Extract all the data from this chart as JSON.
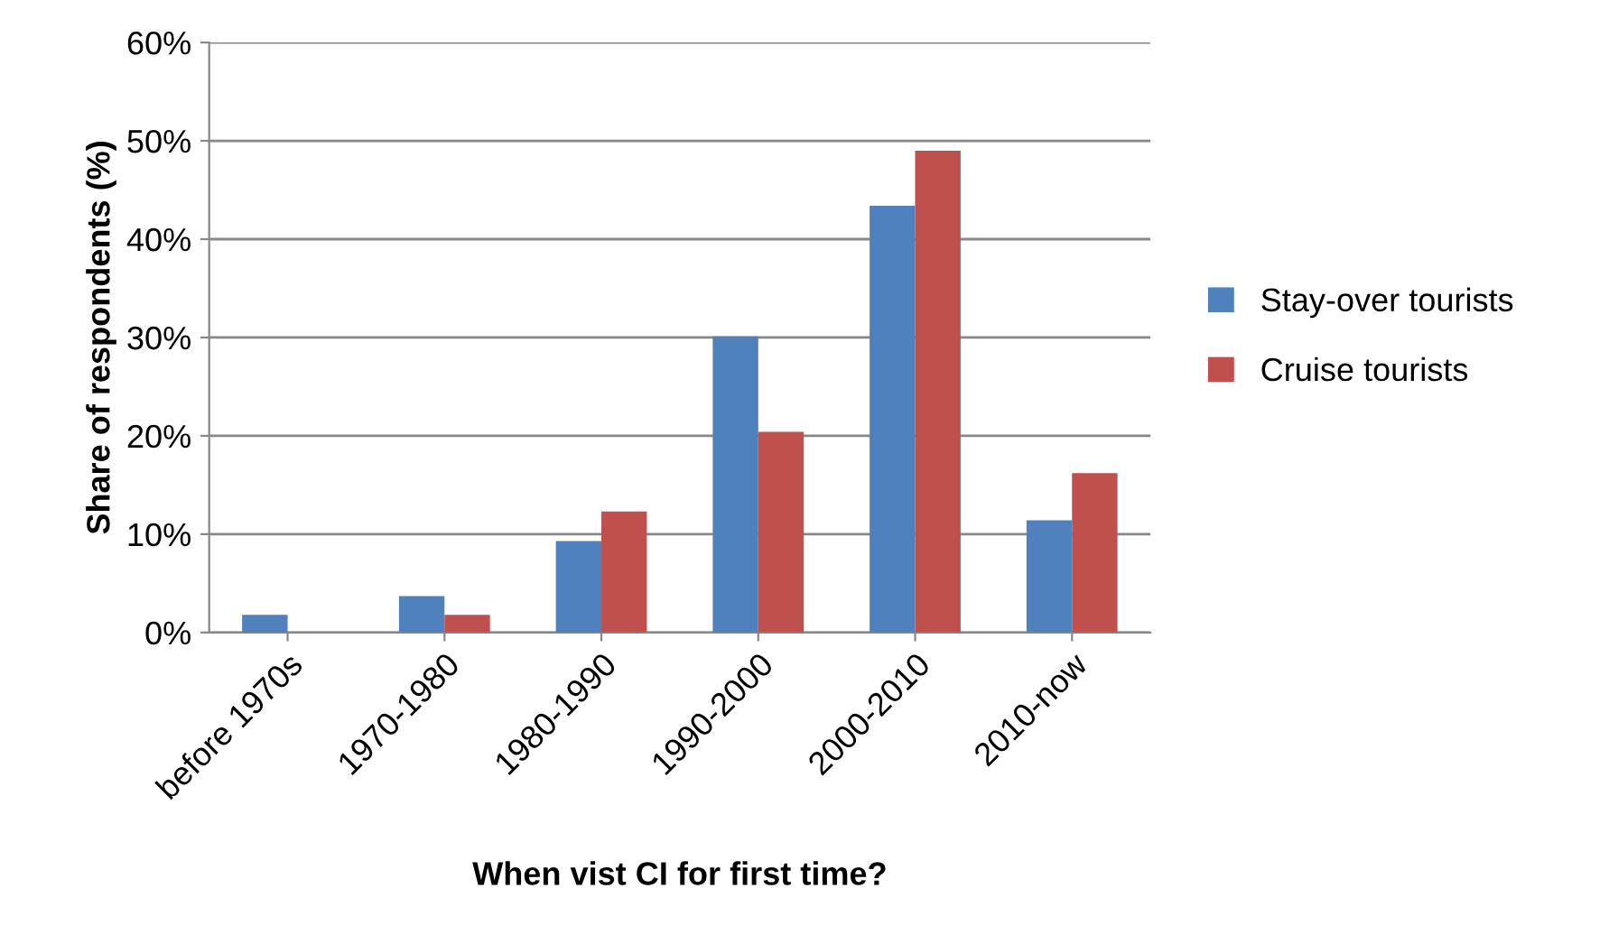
{
  "chart_data": {
    "type": "bar",
    "xlabel": "When vist CI for first time?",
    "ylabel": "Share of respondents (%)",
    "categories": [
      "before 1970s",
      "1970-1980",
      "1980-1990",
      "1990-2000",
      "2000-2010",
      "2010-now"
    ],
    "series": [
      {
        "name": "Stay-over tourists",
        "color": "#4f81bd",
        "values": [
          1.8,
          3.7,
          9.3,
          30.1,
          43.4,
          11.4
        ]
      },
      {
        "name": "Cruise tourists",
        "color": "#c0504d",
        "values": [
          0,
          1.8,
          12.3,
          20.4,
          49.0,
          16.2
        ]
      }
    ],
    "ylim": [
      0,
      60
    ],
    "yticks": [
      {
        "value": 0,
        "label": "0%"
      },
      {
        "value": 10,
        "label": "10%"
      },
      {
        "value": 20,
        "label": "20%"
      },
      {
        "value": 30,
        "label": "30%"
      },
      {
        "value": 40,
        "label": "40%"
      },
      {
        "value": 50,
        "label": "50%"
      },
      {
        "value": 60,
        "label": "60%"
      }
    ],
    "grid": "y",
    "legend": "right"
  }
}
